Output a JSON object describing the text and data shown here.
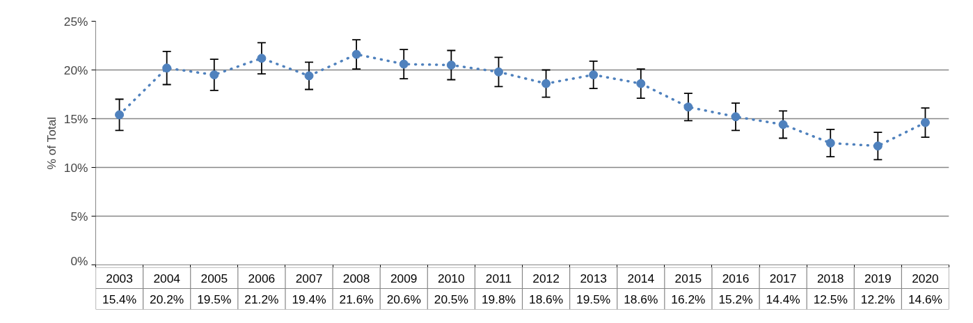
{
  "chart_data": {
    "type": "line",
    "ylabel": "% of Total",
    "categories": [
      "2003",
      "2004",
      "2005",
      "2006",
      "2007",
      "2008",
      "2009",
      "2010",
      "2011",
      "2012",
      "2013",
      "2014",
      "2015",
      "2016",
      "2017",
      "2018",
      "2019",
      "2020"
    ],
    "series": [
      {
        "color": "#4f81bd",
        "values": [
          15.4,
          20.2,
          19.5,
          21.2,
          19.4,
          21.6,
          20.6,
          20.5,
          19.8,
          18.6,
          19.5,
          18.6,
          16.2,
          15.2,
          14.4,
          12.5,
          12.2,
          14.6
        ],
        "value_labels": [
          "15.4%",
          "20.2%",
          "19.5%",
          "21.2%",
          "19.4%",
          "21.6%",
          "20.6%",
          "20.5%",
          "19.8%",
          "18.6%",
          "19.5%",
          "18.6%",
          "16.2%",
          "15.2%",
          "14.4%",
          "12.5%",
          "12.2%",
          "14.6%"
        ],
        "errors": [
          1.6,
          1.7,
          1.6,
          1.6,
          1.4,
          1.5,
          1.5,
          1.5,
          1.5,
          1.4,
          1.4,
          1.5,
          1.4,
          1.4,
          1.4,
          1.4,
          1.4,
          1.5
        ]
      }
    ],
    "ylim": [
      0,
      25
    ],
    "yticks": [
      {
        "value": 0,
        "label": "0%"
      },
      {
        "value": 5,
        "label": "5%"
      },
      {
        "value": 10,
        "label": "10%"
      },
      {
        "value": 15,
        "label": "15%"
      },
      {
        "value": 20,
        "label": "20%"
      },
      {
        "value": 25,
        "label": "25%"
      }
    ],
    "grid": "y",
    "marker": "circle",
    "line_style": "dotted"
  }
}
